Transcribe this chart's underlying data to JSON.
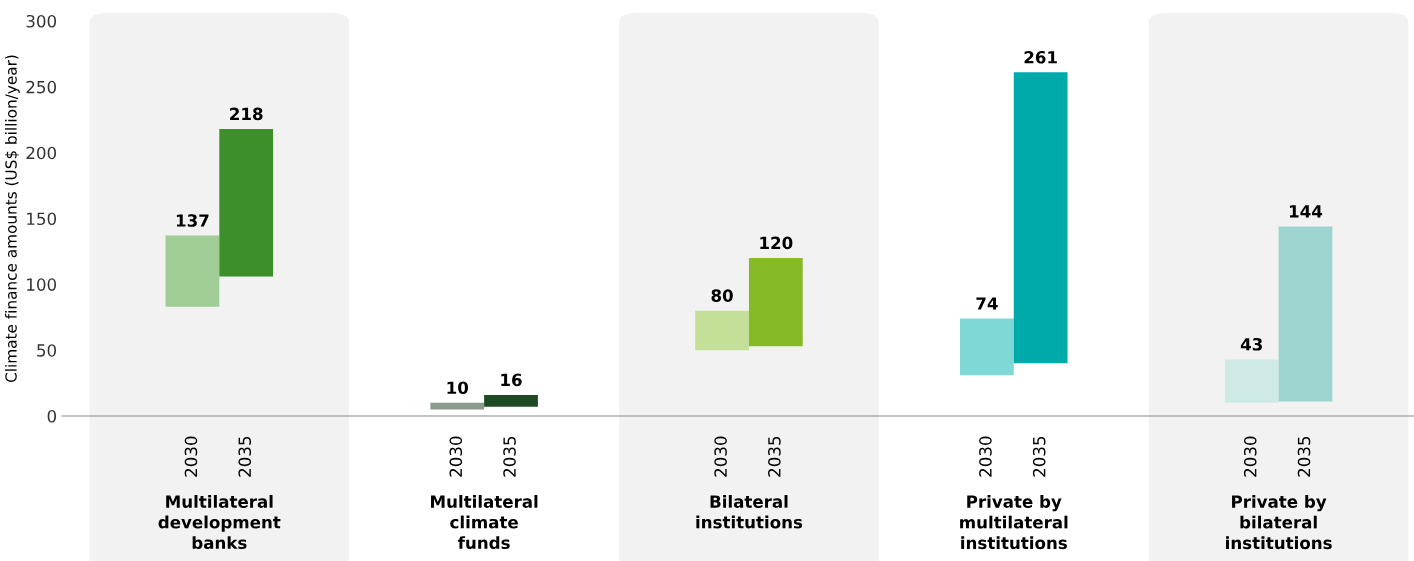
{
  "chart_data": {
    "type": "bar",
    "ylabel": "Climate finance amounts (US$ billion/year)",
    "categories": [
      "2030",
      "2035",
      "2030",
      "2035",
      "2030",
      "2035",
      "2030",
      "2035",
      "2030",
      "2035"
    ],
    "base": [
      83,
      106,
      5,
      7,
      50,
      53,
      31,
      40,
      10,
      11
    ],
    "values": [
      54,
      112,
      5,
      9,
      30,
      67,
      43,
      221,
      33,
      133
    ],
    "value_labels": [
      "137",
      "218",
      "10",
      "16",
      "80",
      "120",
      "74",
      "261",
      "43",
      "144"
    ],
    "colors": [
      "#a0cc96",
      "#3d8f2b",
      "#8a9a8c",
      "#1e4a23",
      "#c4df97",
      "#86ba26",
      "#80d8d6",
      "#00a9aa",
      "#cfeae6",
      "#9ed4cf"
    ],
    "annotations": [
      "Multilateral\ndevelopment\nbanks",
      "Multilateral\nclimate\nfunds",
      "Bilateral\ninstitutions",
      "Private by\nmultilateral\ninstitutions",
      "Private by\nbilateral\ninstitutions"
    ],
    "ylim": [
      0,
      300
    ],
    "yticks": [
      0,
      50,
      100,
      150,
      200,
      250,
      300
    ],
    "grid": false,
    "legend": false
  }
}
